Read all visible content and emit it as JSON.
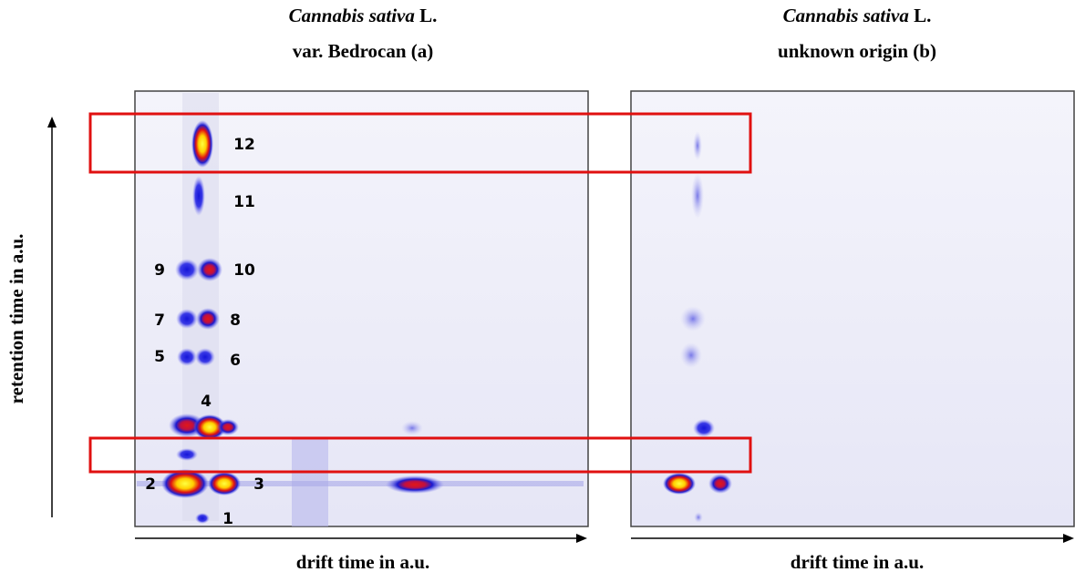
{
  "panels": [
    {
      "species": "Cannabis sativa",
      "suffix": "L.",
      "subtitle": "var. Bedrocan (a)",
      "x_label": "drift time in a.u."
    },
    {
      "species": "Cannabis sativa",
      "suffix": "L.",
      "subtitle": "unknown origin (b)",
      "x_label": "drift time in a.u."
    }
  ],
  "y_label": "retention time in a.u.",
  "peaks": [
    "1",
    "2",
    "3",
    "4",
    "5",
    "6",
    "7",
    "8",
    "9",
    "10",
    "11",
    "12"
  ]
}
